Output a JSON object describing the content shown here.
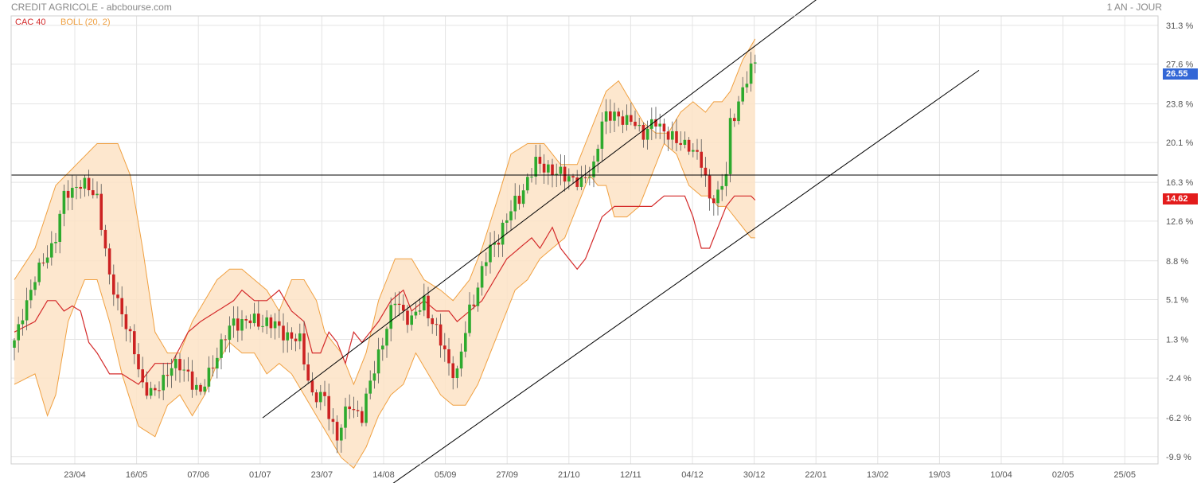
{
  "header": {
    "title": "CREDIT AGRICOLE - abcbourse.com",
    "period": "1 AN - JOUR"
  },
  "legend": {
    "index": "CAC 40",
    "boll": "BOLL (20, 2)"
  },
  "colors": {
    "up": "#2eaa2e",
    "down": "#cc2222",
    "index_line": "#d42a2a",
    "boll_line": "#f0a040",
    "boll_fill": "#fde3c6",
    "grid": "#e4e4e4",
    "last_badge": "#3367d6",
    "index_badge": "#e31c1c"
  },
  "badges": {
    "last": "26.55",
    "index_last": "14.62"
  },
  "chart_data": {
    "type": "candlestick",
    "title": "CREDIT AGRICOLE",
    "unit": "%",
    "ylim": [
      -10.6,
      32.2
    ],
    "y_ticks": [
      "31.3 %",
      "27.6 %",
      "23.8 %",
      "20.1 %",
      "16.3 %",
      "12.6 %",
      "8.8 %",
      "5.1 %",
      "1.3 %",
      "-2.4 %",
      "-6.2 %",
      "-9.9 %"
    ],
    "y_tick_values": [
      31.3,
      27.6,
      23.8,
      20.1,
      16.3,
      12.6,
      8.8,
      5.1,
      1.3,
      -2.4,
      -6.2,
      -9.9
    ],
    "x_ticks": [
      "23/04",
      "16/05",
      "07/06",
      "01/07",
      "23/07",
      "14/08",
      "05/09",
      "27/09",
      "21/10",
      "12/11",
      "04/12",
      "30/12",
      "22/01",
      "13/02",
      "19/03",
      "10/04",
      "02/05",
      "25/05"
    ],
    "horizontal_line": 17.0,
    "last_value": 26.55,
    "index_last_value": 14.62,
    "grid": true,
    "legend_position": "top-left",
    "trend_channel": {
      "upper": {
        "from": [
          0,
          -6.2
        ],
        "to": [
          101,
          34.0
        ]
      },
      "lower": {
        "from": [
          0,
          -13.2
        ],
        "to": [
          101,
          27.0
        ]
      }
    },
    "anchors": {
      "close": [
        [
          0,
          1
        ],
        [
          3,
          5
        ],
        [
          6,
          8
        ],
        [
          10,
          11
        ],
        [
          12,
          15
        ],
        [
          15,
          16
        ],
        [
          17,
          16
        ],
        [
          20,
          15
        ],
        [
          23,
          7
        ],
        [
          26,
          4
        ],
        [
          29,
          0
        ],
        [
          31,
          -3
        ],
        [
          34,
          -4
        ],
        [
          38,
          -1
        ],
        [
          42,
          -2
        ],
        [
          45,
          -4
        ],
        [
          49,
          0
        ],
        [
          53,
          3
        ],
        [
          57,
          3
        ],
        [
          61,
          3
        ],
        [
          65,
          2
        ],
        [
          69,
          1
        ],
        [
          72,
          -4
        ],
        [
          75,
          -4.5
        ],
        [
          78,
          -8
        ],
        [
          81,
          -5
        ],
        [
          84,
          -6
        ],
        [
          88,
          0
        ],
        [
          92,
          5
        ],
        [
          96,
          3
        ],
        [
          99,
          5
        ],
        [
          102,
          2
        ],
        [
          105,
          -1
        ],
        [
          107,
          -2
        ],
        [
          110,
          4
        ],
        [
          114,
          9
        ],
        [
          118,
          12
        ],
        [
          122,
          15
        ],
        [
          126,
          18
        ],
        [
          128,
          18
        ],
        [
          131,
          17
        ],
        [
          134,
          17
        ],
        [
          137,
          16
        ],
        [
          140,
          18
        ],
        [
          142,
          22
        ],
        [
          145,
          23
        ],
        [
          148,
          22
        ],
        [
          150,
          22
        ],
        [
          152,
          21
        ],
        [
          155,
          22
        ],
        [
          158,
          21
        ],
        [
          160,
          20
        ],
        [
          163,
          20
        ],
        [
          166,
          18
        ],
        [
          168,
          15
        ],
        [
          170,
          15
        ],
        [
          172,
          17
        ],
        [
          173,
          22
        ],
        [
          175,
          24
        ],
        [
          177,
          26
        ],
        [
          179,
          28
        ]
      ],
      "spread": [
        [
          0,
          0.7
        ],
        [
          30,
          0.9
        ],
        [
          60,
          1.0
        ],
        [
          90,
          1.0
        ],
        [
          120,
          1.1
        ],
        [
          150,
          0.9
        ],
        [
          179,
          1.0
        ]
      ],
      "boll_upper": [
        [
          0,
          7
        ],
        [
          5,
          10
        ],
        [
          10,
          16
        ],
        [
          15,
          18
        ],
        [
          20,
          20
        ],
        [
          25,
          20
        ],
        [
          28,
          17
        ],
        [
          31,
          10
        ],
        [
          34,
          2
        ],
        [
          37,
          0
        ],
        [
          40,
          0
        ],
        [
          43,
          3
        ],
        [
          46,
          5
        ],
        [
          49,
          7
        ],
        [
          52,
          8
        ],
        [
          55,
          8
        ],
        [
          58,
          7
        ],
        [
          61,
          6
        ],
        [
          64,
          4
        ],
        [
          67,
          7
        ],
        [
          70,
          7
        ],
        [
          73,
          5
        ],
        [
          75,
          2
        ],
        [
          79,
          0
        ],
        [
          82,
          -3
        ],
        [
          85,
          0
        ],
        [
          88,
          5
        ],
        [
          92,
          9
        ],
        [
          96,
          9
        ],
        [
          99,
          7
        ],
        [
          103,
          6
        ],
        [
          106,
          5
        ],
        [
          110,
          7
        ],
        [
          113,
          10
        ],
        [
          117,
          15
        ],
        [
          120,
          19
        ],
        [
          124,
          20
        ],
        [
          128,
          20
        ],
        [
          132,
          18
        ],
        [
          136,
          18
        ],
        [
          140,
          22
        ],
        [
          143,
          25
        ],
        [
          146,
          26
        ],
        [
          149,
          24
        ],
        [
          152,
          22
        ],
        [
          155,
          21
        ],
        [
          158,
          21
        ],
        [
          161,
          23
        ],
        [
          164,
          24
        ],
        [
          167,
          23
        ],
        [
          169,
          24
        ],
        [
          171,
          24
        ],
        [
          173,
          25
        ],
        [
          176,
          28
        ],
        [
          179,
          30
        ]
      ],
      "boll_lower": [
        [
          0,
          -3
        ],
        [
          5,
          -2
        ],
        [
          8,
          -6
        ],
        [
          10,
          -4
        ],
        [
          13,
          3
        ],
        [
          17,
          7
        ],
        [
          20,
          7
        ],
        [
          23,
          3
        ],
        [
          26,
          -2
        ],
        [
          30,
          -7
        ],
        [
          34,
          -8
        ],
        [
          37,
          -5
        ],
        [
          40,
          -4
        ],
        [
          43,
          -6
        ],
        [
          46,
          -4
        ],
        [
          49,
          -1
        ],
        [
          52,
          1
        ],
        [
          55,
          0
        ],
        [
          58,
          0
        ],
        [
          61,
          -2
        ],
        [
          64,
          -1
        ],
        [
          67,
          -2
        ],
        [
          70,
          -4
        ],
        [
          73,
          -6
        ],
        [
          76,
          -8
        ],
        [
          79,
          -10
        ],
        [
          82,
          -11
        ],
        [
          85,
          -9
        ],
        [
          88,
          -6
        ],
        [
          91,
          -4
        ],
        [
          94,
          -3
        ],
        [
          97,
          0
        ],
        [
          100,
          -2
        ],
        [
          103,
          -4
        ],
        [
          106,
          -5
        ],
        [
          109,
          -5
        ],
        [
          112,
          -3
        ],
        [
          115,
          0
        ],
        [
          118,
          3
        ],
        [
          121,
          6
        ],
        [
          124,
          7
        ],
        [
          127,
          9
        ],
        [
          130,
          10
        ],
        [
          133,
          11
        ],
        [
          136,
          14
        ],
        [
          139,
          17
        ],
        [
          141,
          16
        ],
        [
          143,
          16
        ],
        [
          145,
          13
        ],
        [
          148,
          13
        ],
        [
          151,
          14
        ],
        [
          154,
          17
        ],
        [
          157,
          20
        ],
        [
          160,
          19
        ],
        [
          163,
          16
        ],
        [
          166,
          15
        ],
        [
          168,
          15
        ],
        [
          170,
          14
        ],
        [
          172,
          14
        ],
        [
          174,
          13
        ],
        [
          176,
          12
        ],
        [
          178,
          11
        ],
        [
          179,
          11
        ]
      ],
      "index": [
        [
          0,
          2
        ],
        [
          5,
          3
        ],
        [
          8,
          5
        ],
        [
          10,
          5
        ],
        [
          12,
          4
        ],
        [
          14,
          4.5
        ],
        [
          16,
          4
        ],
        [
          18,
          1
        ],
        [
          20,
          0
        ],
        [
          23,
          -2
        ],
        [
          26,
          -2
        ],
        [
          30,
          -3
        ],
        [
          34,
          -1
        ],
        [
          38,
          -1
        ],
        [
          42,
          2
        ],
        [
          45,
          3
        ],
        [
          49,
          4
        ],
        [
          53,
          5
        ],
        [
          55,
          6
        ],
        [
          58,
          5
        ],
        [
          61,
          5
        ],
        [
          64,
          6
        ],
        [
          67,
          4
        ],
        [
          70,
          3
        ],
        [
          72,
          0
        ],
        [
          74,
          0
        ],
        [
          76,
          2
        ],
        [
          78,
          1
        ],
        [
          80,
          -1
        ],
        [
          82,
          2
        ],
        [
          84,
          1
        ],
        [
          86,
          2
        ],
        [
          88,
          3
        ],
        [
          91,
          5
        ],
        [
          94,
          6
        ],
        [
          96,
          4
        ],
        [
          99,
          5
        ],
        [
          102,
          4
        ],
        [
          105,
          4
        ],
        [
          107,
          3
        ],
        [
          110,
          4
        ],
        [
          113,
          5
        ],
        [
          116,
          7
        ],
        [
          119,
          9
        ],
        [
          122,
          10
        ],
        [
          125,
          11
        ],
        [
          127,
          10
        ],
        [
          130,
          12
        ],
        [
          132,
          10
        ],
        [
          134,
          9
        ],
        [
          136,
          8
        ],
        [
          138,
          9
        ],
        [
          140,
          11
        ],
        [
          142,
          13
        ],
        [
          145,
          14
        ],
        [
          148,
          14
        ],
        [
          151,
          14
        ],
        [
          154,
          14
        ],
        [
          157,
          15
        ],
        [
          160,
          15
        ],
        [
          162,
          15
        ],
        [
          164,
          13
        ],
        [
          166,
          10
        ],
        [
          168,
          10
        ],
        [
          170,
          12
        ],
        [
          172,
          14
        ],
        [
          174,
          15
        ],
        [
          176,
          15
        ],
        [
          178,
          15
        ],
        [
          179,
          14.6
        ]
      ]
    }
  }
}
